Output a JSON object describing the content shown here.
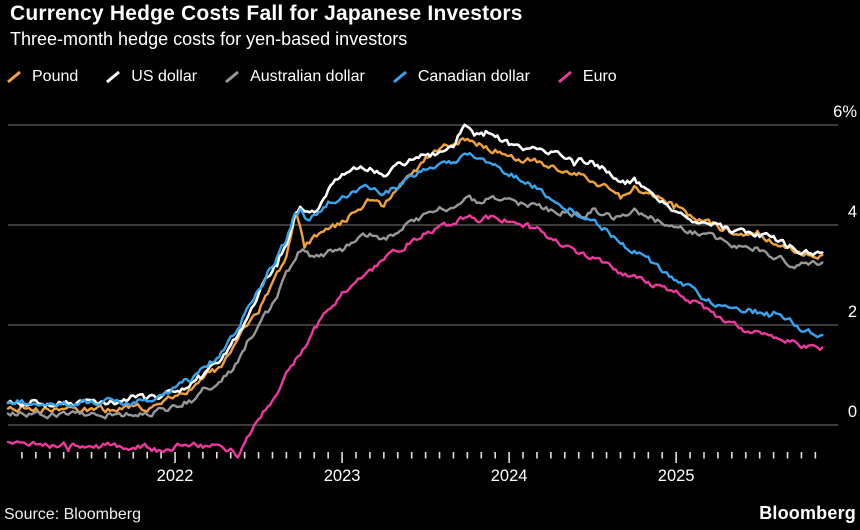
{
  "header": {
    "title": "Currency Hedge Costs Fall for Japanese Investors",
    "subtitle": "Three-month hedge costs for yen-based investors"
  },
  "source": {
    "label": "Source: Bloomberg",
    "brand": "Bloomberg"
  },
  "colors": {
    "background": "#000000",
    "text": "#ffffff",
    "grid": "#606060",
    "tick": "#e0e0e0"
  },
  "chart_data": {
    "type": "line",
    "title": "Currency Hedge Costs Fall for Japanese Investors",
    "subtitle": "Three-month hedge costs for yen-based investors",
    "x_unit": "months since Jan 2021",
    "x_range_note": "data runs from about Jan 2021 to Nov 2025",
    "legend_position": "top",
    "grid": true,
    "x_axis": {
      "year_labels": [
        {
          "label": "2022",
          "month_index": 12
        },
        {
          "label": "2023",
          "month_index": 24
        },
        {
          "label": "2024",
          "month_index": 36
        },
        {
          "label": "2025",
          "month_index": 48
        }
      ],
      "minor_ticks": "monthly",
      "first_tick_month": 1,
      "last_tick_month": 58
    },
    "y_axis": {
      "unit": "%",
      "min": -0.8,
      "max": 6.4,
      "ticks": [
        {
          "label": "6%",
          "value": 6
        },
        {
          "label": "4",
          "value": 4
        },
        {
          "label": "2",
          "value": 2
        },
        {
          "label": "0",
          "value": 0
        }
      ]
    },
    "series": [
      {
        "name": "Pound",
        "color": "#f2a23c",
        "points": [
          [
            0,
            0.32
          ],
          [
            2,
            0.3
          ],
          [
            4,
            0.28
          ],
          [
            6,
            0.3
          ],
          [
            8,
            0.32
          ],
          [
            10,
            0.35
          ],
          [
            11,
            0.45
          ],
          [
            12,
            0.55
          ],
          [
            13,
            0.7
          ],
          [
            14,
            0.95
          ],
          [
            15,
            1.1
          ],
          [
            16,
            1.4
          ],
          [
            17,
            1.9
          ],
          [
            18,
            2.3
          ],
          [
            19,
            2.8
          ],
          [
            20,
            3.4
          ],
          [
            20.7,
            4.3
          ],
          [
            21.3,
            3.6
          ],
          [
            22,
            3.75
          ],
          [
            23,
            3.9
          ],
          [
            24,
            4.05
          ],
          [
            25,
            4.3
          ],
          [
            26,
            4.5
          ],
          [
            27,
            4.4
          ],
          [
            28,
            4.7
          ],
          [
            29,
            5.0
          ],
          [
            30,
            5.3
          ],
          [
            31,
            5.55
          ],
          [
            32,
            5.6
          ],
          [
            33,
            5.75
          ],
          [
            34,
            5.6
          ],
          [
            35,
            5.5
          ],
          [
            36,
            5.35
          ],
          [
            37,
            5.3
          ],
          [
            38,
            5.25
          ],
          [
            39,
            5.2
          ],
          [
            40,
            5.1
          ],
          [
            41,
            5.0
          ],
          [
            42,
            4.9
          ],
          [
            43,
            4.75
          ],
          [
            44,
            4.55
          ],
          [
            45,
            4.75
          ],
          [
            46,
            4.6
          ],
          [
            47,
            4.5
          ],
          [
            48,
            4.4
          ],
          [
            49,
            4.2
          ],
          [
            50,
            4.05
          ],
          [
            51,
            3.95
          ],
          [
            52,
            3.85
          ],
          [
            53,
            3.8
          ],
          [
            54,
            3.75
          ],
          [
            55,
            3.65
          ],
          [
            56,
            3.55
          ],
          [
            57,
            3.45
          ],
          [
            58.5,
            3.4
          ]
        ]
      },
      {
        "name": "US dollar",
        "color": "#ffffff",
        "points": [
          [
            0,
            0.45
          ],
          [
            2,
            0.44
          ],
          [
            4,
            0.42
          ],
          [
            6,
            0.43
          ],
          [
            8,
            0.48
          ],
          [
            9,
            0.55
          ],
          [
            10,
            0.5
          ],
          [
            11,
            0.6
          ],
          [
            12,
            0.7
          ],
          [
            13,
            0.78
          ],
          [
            14,
            1.0
          ],
          [
            15,
            1.2
          ],
          [
            16,
            1.55
          ],
          [
            17,
            2.05
          ],
          [
            18,
            2.6
          ],
          [
            19,
            3.1
          ],
          [
            20,
            3.6
          ],
          [
            20.6,
            4.2
          ],
          [
            21,
            4.35
          ],
          [
            22,
            4.25
          ],
          [
            23,
            4.7
          ],
          [
            24,
            5.0
          ],
          [
            25,
            5.1
          ],
          [
            26,
            5.15
          ],
          [
            27,
            5.0
          ],
          [
            28,
            5.2
          ],
          [
            29,
            5.3
          ],
          [
            30,
            5.4
          ],
          [
            31,
            5.45
          ],
          [
            32,
            5.6
          ],
          [
            32.8,
            6.05
          ],
          [
            33.5,
            5.85
          ],
          [
            34,
            5.8
          ],
          [
            35,
            5.8
          ],
          [
            36,
            5.6
          ],
          [
            37,
            5.55
          ],
          [
            38,
            5.5
          ],
          [
            39,
            5.45
          ],
          [
            40,
            5.4
          ],
          [
            41,
            5.3
          ],
          [
            42,
            5.25
          ],
          [
            43,
            5.1
          ],
          [
            44,
            4.8
          ],
          [
            45,
            4.9
          ],
          [
            46,
            4.7
          ],
          [
            47,
            4.5
          ],
          [
            48,
            4.25
          ],
          [
            49,
            4.15
          ],
          [
            50,
            4.05
          ],
          [
            51,
            3.95
          ],
          [
            52,
            3.9
          ],
          [
            53,
            3.85
          ],
          [
            54,
            3.8
          ],
          [
            55,
            3.7
          ],
          [
            56,
            3.6
          ],
          [
            57,
            3.5
          ],
          [
            58.5,
            3.45
          ]
        ]
      },
      {
        "name": "Australian dollar",
        "color": "#989898",
        "points": [
          [
            0,
            0.25
          ],
          [
            2,
            0.22
          ],
          [
            4,
            0.2
          ],
          [
            6,
            0.2
          ],
          [
            8,
            0.22
          ],
          [
            10,
            0.25
          ],
          [
            11,
            0.28
          ],
          [
            12,
            0.35
          ],
          [
            13,
            0.5
          ],
          [
            14,
            0.7
          ],
          [
            15,
            0.85
          ],
          [
            16,
            1.1
          ],
          [
            17,
            1.5
          ],
          [
            18,
            2.0
          ],
          [
            19,
            2.4
          ],
          [
            20,
            3.0
          ],
          [
            21,
            3.5
          ],
          [
            22,
            3.35
          ],
          [
            23,
            3.45
          ],
          [
            24,
            3.5
          ],
          [
            25,
            3.7
          ],
          [
            26,
            3.8
          ],
          [
            27,
            3.7
          ],
          [
            28,
            3.9
          ],
          [
            29,
            4.05
          ],
          [
            30,
            4.2
          ],
          [
            31,
            4.3
          ],
          [
            32,
            4.35
          ],
          [
            33,
            4.55
          ],
          [
            34,
            4.45
          ],
          [
            35,
            4.55
          ],
          [
            36,
            4.6
          ],
          [
            37,
            4.45
          ],
          [
            38,
            4.35
          ],
          [
            39,
            4.3
          ],
          [
            40,
            4.25
          ],
          [
            41,
            4.2
          ],
          [
            42,
            4.3
          ],
          [
            43,
            4.2
          ],
          [
            44,
            4.1
          ],
          [
            45,
            4.25
          ],
          [
            46,
            4.15
          ],
          [
            47,
            4.05
          ],
          [
            48,
            4.0
          ],
          [
            49,
            3.9
          ],
          [
            50,
            3.8
          ],
          [
            51,
            3.7
          ],
          [
            52,
            3.6
          ],
          [
            53,
            3.55
          ],
          [
            54,
            3.5
          ],
          [
            55,
            3.4
          ],
          [
            56,
            3.25
          ],
          [
            57,
            3.2
          ],
          [
            58.5,
            3.25
          ]
        ]
      },
      {
        "name": "Canadian dollar",
        "color": "#38a5f0",
        "points": [
          [
            0,
            0.45
          ],
          [
            2,
            0.45
          ],
          [
            4,
            0.43
          ],
          [
            6,
            0.44
          ],
          [
            8,
            0.46
          ],
          [
            10,
            0.5
          ],
          [
            11,
            0.58
          ],
          [
            12,
            0.75
          ],
          [
            13,
            0.9
          ],
          [
            14,
            1.15
          ],
          [
            15,
            1.35
          ],
          [
            16,
            1.7
          ],
          [
            17,
            2.2
          ],
          [
            18,
            2.7
          ],
          [
            19,
            3.2
          ],
          [
            20,
            3.7
          ],
          [
            20.6,
            4.25
          ],
          [
            21,
            4.3
          ],
          [
            21.5,
            4.05
          ],
          [
            22,
            4.2
          ],
          [
            23,
            4.45
          ],
          [
            24,
            4.55
          ],
          [
            25,
            4.7
          ],
          [
            26,
            4.75
          ],
          [
            27,
            4.65
          ],
          [
            28,
            4.8
          ],
          [
            29,
            4.95
          ],
          [
            30,
            5.1
          ],
          [
            31,
            5.2
          ],
          [
            32,
            5.25
          ],
          [
            33,
            5.4
          ],
          [
            34,
            5.3
          ],
          [
            35,
            5.2
          ],
          [
            36,
            5.05
          ],
          [
            37,
            4.9
          ],
          [
            38,
            4.75
          ],
          [
            39,
            4.55
          ],
          [
            40,
            4.4
          ],
          [
            41,
            4.2
          ],
          [
            42,
            4.1
          ],
          [
            43,
            3.9
          ],
          [
            44,
            3.6
          ],
          [
            45,
            3.5
          ],
          [
            46,
            3.3
          ],
          [
            47,
            3.1
          ],
          [
            48,
            2.9
          ],
          [
            49,
            2.75
          ],
          [
            50,
            2.55
          ],
          [
            51,
            2.4
          ],
          [
            52,
            2.3
          ],
          [
            53,
            2.3
          ],
          [
            54,
            2.25
          ],
          [
            55,
            2.2
          ],
          [
            56,
            2.1
          ],
          [
            57,
            1.9
          ],
          [
            58.5,
            1.8
          ]
        ]
      },
      {
        "name": "Euro",
        "color": "#f0399f",
        "points": [
          [
            0,
            -0.35
          ],
          [
            2,
            -0.38
          ],
          [
            4,
            -0.4
          ],
          [
            6,
            -0.42
          ],
          [
            8,
            -0.4
          ],
          [
            10,
            -0.42
          ],
          [
            11,
            -0.55
          ],
          [
            12,
            -0.4
          ],
          [
            13,
            -0.38
          ],
          [
            14,
            -0.45
          ],
          [
            15,
            -0.4
          ],
          [
            16,
            -0.5
          ],
          [
            16.5,
            -0.6
          ],
          [
            17,
            -0.4
          ],
          [
            17.5,
            -0.15
          ],
          [
            18,
            0.15
          ],
          [
            19,
            0.55
          ],
          [
            20,
            1.0
          ],
          [
            21,
            1.45
          ],
          [
            22,
            1.9
          ],
          [
            23,
            2.3
          ],
          [
            24,
            2.6
          ],
          [
            25,
            2.9
          ],
          [
            26,
            3.1
          ],
          [
            27,
            3.3
          ],
          [
            28,
            3.5
          ],
          [
            29,
            3.7
          ],
          [
            30,
            3.85
          ],
          [
            31,
            3.95
          ],
          [
            32,
            4.05
          ],
          [
            33,
            4.15
          ],
          [
            34,
            4.1
          ],
          [
            35,
            4.15
          ],
          [
            36,
            4.1
          ],
          [
            37,
            4.0
          ],
          [
            38,
            3.9
          ],
          [
            39,
            3.75
          ],
          [
            40,
            3.6
          ],
          [
            41,
            3.45
          ],
          [
            42,
            3.35
          ],
          [
            43,
            3.2
          ],
          [
            44,
            3.05
          ],
          [
            45,
            2.95
          ],
          [
            46,
            2.85
          ],
          [
            47,
            2.75
          ],
          [
            48,
            2.65
          ],
          [
            49,
            2.5
          ],
          [
            50,
            2.3
          ],
          [
            51,
            2.15
          ],
          [
            52,
            2.0
          ],
          [
            53,
            1.9
          ],
          [
            54,
            1.85
          ],
          [
            55,
            1.8
          ],
          [
            56,
            1.7
          ],
          [
            57,
            1.6
          ],
          [
            58.5,
            1.55
          ]
        ]
      }
    ]
  }
}
